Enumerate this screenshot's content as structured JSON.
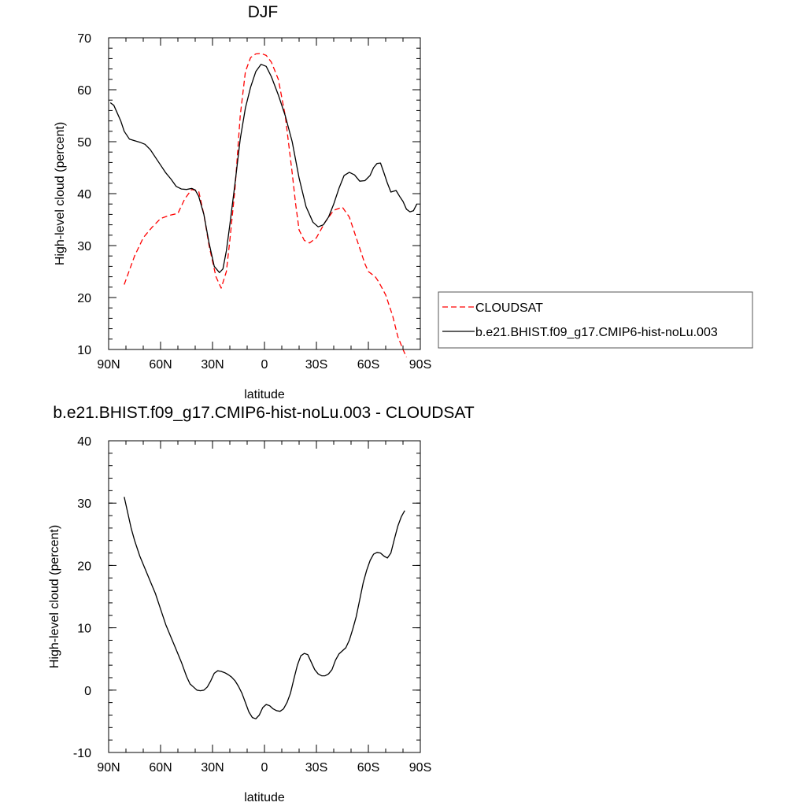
{
  "chart_data": [
    {
      "type": "line",
      "title": "DJF",
      "xlabel": "latitude",
      "ylabel": "High-level cloud (percent)",
      "xlim": [
        90,
        -90
      ],
      "ylim": [
        10,
        70
      ],
      "x_ticks": [
        90,
        60,
        30,
        0,
        -30,
        -60,
        -90
      ],
      "x_tick_labels": [
        "90N",
        "60N",
        "30N",
        "0",
        "30S",
        "60S",
        "90S"
      ],
      "y_ticks": [
        10,
        20,
        30,
        40,
        50,
        60,
        70
      ],
      "y_tick_labels": [
        "10",
        "20",
        "30",
        "40",
        "50",
        "60",
        "70"
      ],
      "legend_position": "right",
      "series": [
        {
          "name": "CLOUDSAT",
          "color": "#ff0000",
          "dash": "dashed",
          "x": [
            81,
            75,
            70,
            65,
            60,
            55,
            50,
            46,
            42,
            38,
            35,
            32,
            28,
            25,
            22,
            20,
            17,
            14,
            11,
            8,
            5,
            2,
            -1,
            -4,
            -8,
            -12,
            -16,
            -18,
            -20,
            -23,
            -26,
            -30,
            -35,
            -40,
            -45,
            -49,
            -53,
            -56,
            -58,
            -60,
            -62,
            -64,
            -66,
            -70,
            -74,
            -77,
            -80,
            -82
          ],
          "values": [
            22.5,
            28,
            31.5,
            33.5,
            35.2,
            35.8,
            36.2,
            39,
            40.8,
            40.5,
            36,
            30,
            24,
            21.8,
            25,
            31,
            41,
            55,
            63.5,
            66.2,
            66.9,
            67,
            66.6,
            65.3,
            62,
            55,
            44,
            38,
            33,
            31,
            30.5,
            31.5,
            34.5,
            36.8,
            37.4,
            35.5,
            31.5,
            28.5,
            26.5,
            25,
            24.5,
            24,
            23,
            20.5,
            16.5,
            12.5,
            10,
            8.5
          ]
        },
        {
          "name": "b.e21.BHIST.f09_g17.CMIP6-hist-noLu.003",
          "color": "#000000",
          "dash": "solid",
          "x": [
            89,
            87,
            85,
            83,
            81,
            78,
            75,
            72,
            69,
            66,
            63,
            60,
            57,
            54,
            51,
            48,
            45,
            42,
            40,
            38,
            35,
            32,
            29,
            26,
            24,
            22,
            20,
            17,
            14,
            11,
            8,
            5,
            2,
            -1,
            -4,
            -8,
            -12,
            -16,
            -20,
            -24,
            -28,
            -31,
            -34,
            -37,
            -40,
            -43,
            -46,
            -49,
            -52,
            -55,
            -58,
            -61,
            -63,
            -65,
            -67,
            -69,
            -71,
            -73,
            -76,
            -78,
            -80,
            -82,
            -84,
            -86,
            -88
          ],
          "values": [
            57.5,
            57,
            55.5,
            54,
            52,
            50.5,
            50.2,
            49.9,
            49.5,
            48.5,
            47,
            45.5,
            44,
            42.8,
            41.4,
            40.9,
            40.8,
            41,
            40.7,
            39.5,
            36,
            30.5,
            26,
            24.8,
            25.5,
            29,
            34,
            42,
            50.5,
            56.5,
            60.5,
            63.5,
            64.9,
            64.5,
            62.5,
            59,
            55,
            50,
            43,
            37.5,
            34.5,
            33.6,
            34,
            35.5,
            38,
            41,
            43.5,
            44.1,
            43.6,
            42.4,
            42.5,
            43.5,
            45,
            45.8,
            45.9,
            44,
            42,
            40.3,
            40.6,
            39.5,
            38.5,
            37,
            36.5,
            36.7,
            38
          ]
        }
      ]
    },
    {
      "type": "line",
      "title": "b.e21.BHIST.f09_g17.CMIP6-hist-noLu.003 - CLOUDSAT",
      "xlabel": "latitude",
      "ylabel": "High-level cloud (percent)",
      "xlim": [
        90,
        -90
      ],
      "ylim": [
        -10,
        40
      ],
      "x_ticks": [
        90,
        60,
        30,
        0,
        -30,
        -60,
        -90
      ],
      "x_tick_labels": [
        "90N",
        "60N",
        "30N",
        "0",
        "30S",
        "60S",
        "90S"
      ],
      "y_ticks": [
        -10,
        0,
        10,
        20,
        30,
        40
      ],
      "y_tick_labels": [
        "-10",
        "0",
        "10",
        "20",
        "30",
        "40"
      ],
      "series": [
        {
          "color": "#000000",
          "dash": "solid",
          "x": [
            81,
            79,
            77,
            75,
            72,
            69,
            66,
            63,
            60,
            57,
            54,
            51,
            48,
            45,
            43,
            41,
            39,
            37,
            35,
            33,
            31,
            29,
            27,
            25,
            23,
            21,
            19,
            17,
            15,
            13,
            11,
            9,
            7,
            5,
            3,
            1,
            -1,
            -3,
            -5,
            -7,
            -9,
            -11,
            -13,
            -15,
            -17,
            -19,
            -21,
            -23,
            -25,
            -27,
            -29,
            -31,
            -33,
            -35,
            -37,
            -39,
            -41,
            -43,
            -45,
            -47,
            -49,
            -51,
            -53,
            -55,
            -57,
            -59,
            -61,
            -63,
            -65,
            -67,
            -69,
            -71,
            -73,
            -75,
            -77,
            -79,
            -81
          ],
          "values": [
            31,
            28.5,
            26,
            24,
            21.5,
            19.5,
            17.5,
            15.5,
            13,
            10.5,
            8.5,
            6.5,
            4.5,
            2.2,
            1,
            0.5,
            0,
            -0.1,
            0,
            0.5,
            1.5,
            2.7,
            3.1,
            3,
            2.8,
            2.5,
            2.1,
            1.5,
            0.6,
            -0.5,
            -2,
            -3.5,
            -4.4,
            -4.6,
            -4,
            -2.8,
            -2.3,
            -2.5,
            -3,
            -3.3,
            -3.4,
            -3,
            -2,
            -0.5,
            1.8,
            4,
            5.5,
            5.9,
            5.7,
            4.5,
            3.3,
            2.6,
            2.3,
            2.3,
            2.6,
            3.3,
            4.8,
            5.8,
            6.3,
            6.8,
            8,
            9.8,
            11.8,
            14.5,
            17.2,
            19.2,
            20.8,
            21.8,
            22.1,
            22,
            21.5,
            21.2,
            22,
            24.2,
            26.3,
            27.8,
            28.8
          ]
        }
      ]
    }
  ]
}
